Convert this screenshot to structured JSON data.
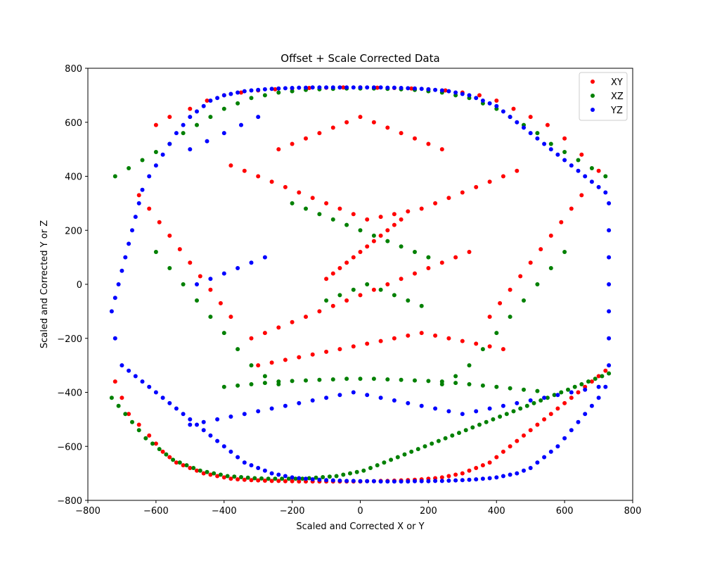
{
  "chart_data": {
    "type": "scatter",
    "title": "Offset + Scale Corrected Data",
    "xlabel": "Scaled and Corrected X or Y",
    "ylabel": "Scaled and Corrected Y or Z",
    "xlim": [
      -800,
      800
    ],
    "ylim": [
      -800,
      800
    ],
    "xticks": [
      -800,
      -600,
      -400,
      -200,
      0,
      200,
      400,
      600,
      800
    ],
    "yticks": [
      -800,
      -600,
      -400,
      -200,
      0,
      200,
      400,
      600,
      800
    ],
    "grid": false,
    "legend_position": "top-right",
    "series": [
      {
        "name": "XY",
        "color": "#ff0000",
        "x": [
          -720,
          -700,
          -680,
          -650,
          -620,
          -600,
          -580,
          -560,
          -540,
          -520,
          -500,
          -480,
          -460,
          -440,
          -420,
          -400,
          -380,
          -360,
          -340,
          -320,
          -300,
          -280,
          -260,
          -240,
          -220,
          -200,
          -180,
          -160,
          -140,
          -120,
          -100,
          -80,
          -60,
          -40,
          -20,
          0,
          20,
          40,
          60,
          80,
          100,
          120,
          140,
          160,
          180,
          200,
          220,
          240,
          260,
          280,
          300,
          320,
          340,
          360,
          380,
          400,
          420,
          440,
          460,
          480,
          500,
          520,
          540,
          560,
          580,
          600,
          620,
          640,
          660,
          680,
          700,
          720,
          -600,
          -560,
          -500,
          -450,
          -400,
          -350,
          -300,
          -250,
          -200,
          -150,
          -100,
          -50,
          0,
          50,
          100,
          150,
          200,
          250,
          300,
          350,
          400,
          450,
          500,
          550,
          600,
          650,
          700,
          -380,
          -340,
          -300,
          -260,
          -220,
          -180,
          -140,
          -100,
          -60,
          -20,
          20,
          60,
          100,
          140,
          180,
          220,
          260,
          300,
          340,
          380,
          420,
          460,
          -300,
          -260,
          -220,
          -180,
          -140,
          -100,
          -60,
          -20,
          20,
          60,
          100,
          140,
          180,
          220,
          260,
          300,
          340,
          380,
          420,
          -650,
          -620,
          -590,
          -560,
          -530,
          -500,
          -470,
          -440,
          -410,
          -380,
          650,
          620,
          590,
          560,
          530,
          500,
          470,
          440,
          410,
          380,
          -240,
          -200,
          -160,
          -120,
          -80,
          -40,
          0,
          40,
          80,
          120,
          160,
          200,
          240,
          -100,
          -80,
          -60,
          -40,
          -20,
          0,
          20,
          40,
          60,
          80,
          100,
          120,
          -320,
          -280,
          -240,
          -200,
          -160,
          -120,
          -80,
          -40,
          0,
          40,
          80,
          120,
          160,
          200,
          240,
          280,
          320
        ],
        "y": [
          -360,
          -420,
          -480,
          -520,
          -560,
          -590,
          -620,
          -640,
          -660,
          -670,
          -680,
          -690,
          -700,
          -705,
          -710,
          -715,
          -720,
          -722,
          -724,
          -725,
          -726,
          -727,
          -728,
          -728,
          -729,
          -729,
          -730,
          -730,
          -730,
          -730,
          -730,
          -730,
          -730,
          -730,
          -730,
          -730,
          -729,
          -729,
          -728,
          -728,
          -727,
          -726,
          -725,
          -724,
          -722,
          -720,
          -718,
          -715,
          -710,
          -705,
          -700,
          -690,
          -680,
          -670,
          -660,
          -640,
          -620,
          -600,
          -580,
          -560,
          -540,
          -520,
          -500,
          -480,
          -460,
          -440,
          -420,
          -400,
          -380,
          -360,
          -340,
          -320,
          590,
          620,
          650,
          680,
          700,
          710,
          718,
          722,
          725,
          727,
          728,
          729,
          729,
          728,
          727,
          725,
          722,
          718,
          710,
          700,
          680,
          650,
          620,
          590,
          540,
          480,
          420,
          440,
          420,
          400,
          380,
          360,
          340,
          320,
          300,
          280,
          260,
          240,
          250,
          260,
          270,
          280,
          300,
          320,
          340,
          360,
          380,
          400,
          420,
          -300,
          -290,
          -280,
          -270,
          -260,
          -250,
          -240,
          -230,
          -220,
          -210,
          -200,
          -190,
          -180,
          -190,
          -200,
          -210,
          -220,
          -230,
          -240,
          330,
          280,
          230,
          180,
          130,
          80,
          30,
          -20,
          -70,
          -120,
          330,
          280,
          230,
          180,
          130,
          80,
          30,
          -20,
          -70,
          -120,
          500,
          520,
          540,
          560,
          580,
          600,
          620,
          600,
          580,
          560,
          540,
          520,
          500,
          20,
          40,
          60,
          80,
          100,
          120,
          140,
          160,
          180,
          200,
          220,
          240,
          -200,
          -180,
          -160,
          -140,
          -120,
          -100,
          -80,
          -60,
          -40,
          -20,
          0,
          20,
          40,
          60,
          80,
          100,
          120
        ]
      },
      {
        "name": "XZ",
        "color": "#008000",
        "x": [
          -730,
          -710,
          -690,
          -670,
          -650,
          -630,
          -610,
          -590,
          -570,
          -550,
          -530,
          -510,
          -490,
          -470,
          -450,
          -430,
          -410,
          -390,
          -370,
          -350,
          -330,
          -310,
          -290,
          -270,
          -250,
          -230,
          -210,
          -190,
          -170,
          -150,
          -130,
          -110,
          -90,
          -70,
          -50,
          -30,
          -10,
          10,
          30,
          50,
          70,
          90,
          110,
          130,
          150,
          170,
          190,
          210,
          230,
          250,
          270,
          290,
          310,
          330,
          350,
          370,
          390,
          410,
          430,
          450,
          470,
          490,
          510,
          530,
          550,
          570,
          590,
          610,
          630,
          650,
          670,
          690,
          710,
          730,
          -720,
          -680,
          -640,
          -600,
          -560,
          -520,
          -480,
          -440,
          -400,
          -360,
          -320,
          -280,
          -240,
          -200,
          -160,
          -120,
          -80,
          -40,
          0,
          40,
          80,
          120,
          160,
          200,
          240,
          280,
          320,
          360,
          400,
          440,
          480,
          520,
          560,
          600,
          640,
          680,
          720,
          -400,
          -360,
          -320,
          -280,
          -240,
          -200,
          -160,
          -120,
          -80,
          -40,
          0,
          40,
          80,
          120,
          160,
          200,
          240,
          280,
          320,
          360,
          400,
          440,
          480,
          520,
          -600,
          -560,
          -520,
          -480,
          -440,
          -400,
          -360,
          -320,
          -280,
          -240,
          600,
          560,
          520,
          480,
          440,
          400,
          360,
          320,
          280,
          240,
          -200,
          -160,
          -120,
          -80,
          -40,
          0,
          40,
          80,
          120,
          160,
          200,
          -100,
          -60,
          -20,
          20,
          60,
          100,
          140,
          180
        ],
        "y": [
          -420,
          -450,
          -480,
          -510,
          -540,
          -570,
          -590,
          -610,
          -630,
          -650,
          -660,
          -670,
          -680,
          -690,
          -695,
          -700,
          -705,
          -710,
          -712,
          -714,
          -716,
          -718,
          -719,
          -720,
          -720,
          -720,
          -720,
          -720,
          -720,
          -718,
          -716,
          -714,
          -712,
          -710,
          -705,
          -700,
          -695,
          -690,
          -680,
          -670,
          -660,
          -650,
          -640,
          -630,
          -620,
          -610,
          -600,
          -590,
          -580,
          -570,
          -560,
          -550,
          -540,
          -530,
          -520,
          -510,
          -500,
          -490,
          -480,
          -470,
          -460,
          -450,
          -440,
          -430,
          -420,
          -410,
          -400,
          -390,
          -380,
          -370,
          -360,
          -350,
          -340,
          -330,
          400,
          430,
          460,
          490,
          520,
          560,
          590,
          620,
          650,
          670,
          690,
          700,
          710,
          715,
          720,
          722,
          724,
          725,
          725,
          725,
          724,
          722,
          720,
          715,
          710,
          700,
          690,
          670,
          650,
          620,
          590,
          560,
          520,
          490,
          460,
          430,
          400,
          -380,
          -375,
          -370,
          -365,
          -360,
          -358,
          -356,
          -354,
          -352,
          -350,
          -350,
          -350,
          -352,
          -354,
          -356,
          -358,
          -360,
          -365,
          -370,
          -375,
          -380,
          -385,
          -390,
          -395,
          120,
          60,
          0,
          -60,
          -120,
          -180,
          -240,
          -300,
          -340,
          -370,
          120,
          60,
          0,
          -60,
          -120,
          -180,
          -240,
          -300,
          -340,
          -370,
          300,
          280,
          260,
          240,
          220,
          200,
          180,
          160,
          140,
          120,
          100,
          -60,
          -40,
          -20,
          0,
          -20,
          -40,
          -60,
          -80
        ]
      },
      {
        "name": "YZ",
        "color": "#0000ff",
        "x": [
          -730,
          -720,
          -710,
          -700,
          -690,
          -680,
          -670,
          -660,
          -650,
          -640,
          -620,
          -600,
          -580,
          -560,
          -540,
          -520,
          -500,
          -480,
          -460,
          -440,
          -420,
          -400,
          -380,
          -360,
          -340,
          -320,
          -300,
          -280,
          -260,
          -240,
          -220,
          -200,
          -180,
          -160,
          -140,
          -120,
          -100,
          -80,
          -60,
          -40,
          -20,
          0,
          20,
          40,
          60,
          80,
          100,
          120,
          140,
          160,
          180,
          200,
          220,
          240,
          260,
          280,
          300,
          320,
          340,
          360,
          380,
          400,
          420,
          440,
          460,
          480,
          500,
          520,
          540,
          560,
          580,
          600,
          620,
          640,
          660,
          680,
          700,
          720,
          730,
          730,
          730,
          730,
          730,
          730,
          730,
          720,
          700,
          680,
          660,
          640,
          620,
          600,
          580,
          560,
          540,
          520,
          500,
          480,
          460,
          440,
          420,
          400,
          380,
          360,
          340,
          320,
          300,
          280,
          260,
          240,
          220,
          200,
          180,
          160,
          140,
          120,
          100,
          80,
          60,
          40,
          20,
          0,
          -20,
          -40,
          -60,
          -80,
          -100,
          -120,
          -140,
          -160,
          -180,
          -200,
          -220,
          -240,
          -260,
          -280,
          -300,
          -320,
          -340,
          -360,
          -380,
          -400,
          -420,
          -440,
          -460,
          -480,
          -500,
          -520,
          -540,
          -560,
          -580,
          -600,
          -620,
          -640,
          -660,
          -680,
          -700,
          -720,
          -500,
          -460,
          -420,
          -380,
          -340,
          -300,
          -260,
          -220,
          -180,
          -140,
          -100,
          -60,
          -20,
          20,
          60,
          100,
          140,
          180,
          220,
          260,
          300,
          340,
          380,
          420,
          460,
          500,
          540,
          580,
          620,
          660,
          700,
          -500,
          -450,
          -400,
          -350,
          -300,
          -480,
          -440,
          -400,
          -360,
          -320,
          -280
        ],
        "y": [
          -100,
          -50,
          0,
          50,
          100,
          150,
          200,
          250,
          300,
          350,
          400,
          440,
          480,
          520,
          560,
          590,
          620,
          640,
          660,
          680,
          690,
          700,
          705,
          710,
          715,
          718,
          720,
          722,
          724,
          725,
          726,
          727,
          728,
          728,
          729,
          729,
          729,
          729,
          729,
          729,
          729,
          729,
          729,
          729,
          729,
          728,
          728,
          727,
          726,
          725,
          724,
          722,
          720,
          718,
          715,
          710,
          705,
          700,
          690,
          680,
          670,
          660,
          640,
          620,
          600,
          580,
          560,
          540,
          520,
          500,
          480,
          460,
          440,
          420,
          400,
          380,
          360,
          340,
          300,
          200,
          100,
          0,
          -100,
          -200,
          -300,
          -380,
          -420,
          -450,
          -480,
          -510,
          -540,
          -570,
          -600,
          -620,
          -640,
          -660,
          -680,
          -690,
          -700,
          -705,
          -710,
          -715,
          -718,
          -720,
          -722,
          -724,
          -725,
          -726,
          -727,
          -728,
          -728,
          -729,
          -729,
          -729,
          -730,
          -730,
          -730,
          -730,
          -730,
          -729,
          -729,
          -729,
          -728,
          -728,
          -727,
          -726,
          -725,
          -724,
          -722,
          -720,
          -718,
          -715,
          -710,
          -705,
          -700,
          -690,
          -680,
          -670,
          -660,
          -640,
          -620,
          -600,
          -580,
          -560,
          -540,
          -520,
          -500,
          -480,
          -460,
          -440,
          -420,
          -400,
          -380,
          -360,
          -340,
          -320,
          -300,
          -200,
          -520,
          -510,
          -500,
          -490,
          -480,
          -470,
          -460,
          -450,
          -440,
          -430,
          -420,
          -410,
          -400,
          -410,
          -420,
          -430,
          -440,
          -450,
          -460,
          -470,
          -480,
          -470,
          -460,
          -450,
          -440,
          -430,
          -420,
          -410,
          -400,
          -390,
          -380,
          500,
          530,
          560,
          590,
          620,
          0,
          20,
          40,
          60,
          80,
          100
        ]
      }
    ]
  }
}
